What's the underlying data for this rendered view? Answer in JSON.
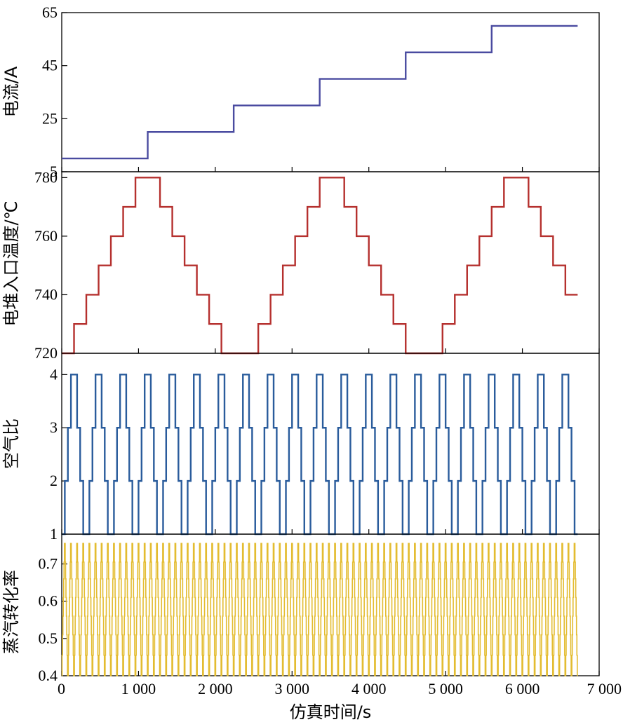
{
  "chart_data": {
    "type": "line",
    "x_axis": {
      "label": "仿真时间/s",
      "range": [
        0,
        7000
      ],
      "ticks": [
        0,
        1000,
        2000,
        3000,
        4000,
        5000,
        6000,
        7000
      ],
      "tick_labels": [
        "0",
        "1 000",
        "2 000",
        "3 000",
        "4 000",
        "5 000",
        "6 000",
        "7 000"
      ]
    },
    "panels": [
      {
        "id": "current",
        "ylabel": "电流/A",
        "ylim": [
          5,
          65
        ],
        "yticks": [
          5,
          25,
          45,
          65
        ],
        "ytick_labels": [
          "5",
          "25",
          "45",
          "65"
        ],
        "color": "#4a4ba0",
        "series": {
          "kind": "step",
          "x": [
            0,
            1120,
            1120,
            2240,
            2240,
            3360,
            3360,
            4480,
            4480,
            5600,
            5600,
            6720
          ],
          "y": [
            10,
            10,
            20,
            20,
            30,
            30,
            40,
            40,
            50,
            50,
            60,
            60
          ]
        }
      },
      {
        "id": "temperature",
        "ylabel": "电堆入口温度/℃",
        "ylim": [
          720,
          782
        ],
        "yticks": [
          720,
          740,
          760,
          780
        ],
        "ytick_labels": [
          "720",
          "740",
          "760",
          "780"
        ],
        "color": "#b5302e",
        "series": {
          "kind": "staircase",
          "levels": [
            720,
            730,
            740,
            750,
            760,
            770,
            780,
            780,
            770,
            760,
            750,
            740,
            730,
            720,
            720
          ],
          "step_seconds": 160,
          "cycles": 3,
          "end": 6720
        }
      },
      {
        "id": "air_ratio",
        "ylabel": "空气比",
        "ylim": [
          1,
          4.4
        ],
        "yticks": [
          1,
          2,
          3,
          4
        ],
        "ytick_labels": [
          "1",
          "2",
          "3",
          "4"
        ],
        "color": "#2a5c9c",
        "series": {
          "kind": "staircase",
          "levels": [
            1,
            2,
            3,
            4,
            4,
            3,
            2,
            1
          ],
          "step_seconds": 40,
          "cycles": 21,
          "end": 6720
        }
      },
      {
        "id": "steam_conversion",
        "ylabel": "蒸汽转化率",
        "ylim": [
          0.4,
          0.78
        ],
        "yticks": [
          0.4,
          0.5,
          0.6,
          0.7
        ],
        "ytick_labels": [
          "0.4",
          "0.5",
          "0.6",
          "0.7"
        ],
        "color": "#e3bc30",
        "series": {
          "kind": "oscillation",
          "min": 0.4,
          "max": 0.755,
          "levels": [
            0.4,
            0.455,
            0.51,
            0.56,
            0.61,
            0.66,
            0.705,
            0.755,
            0.755,
            0.705,
            0.66,
            0.61,
            0.56,
            0.51,
            0.455,
            0.4
          ],
          "period_seconds": 80,
          "end": 6720
        }
      }
    ]
  }
}
